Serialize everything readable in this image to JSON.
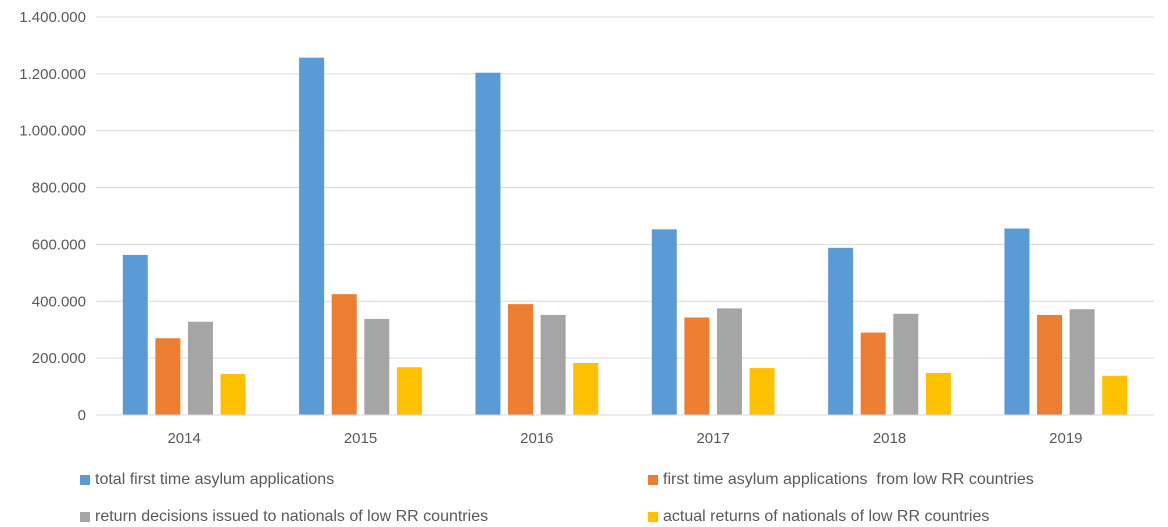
{
  "chart_data": {
    "type": "bar",
    "categories": [
      "2014",
      "2015",
      "2016",
      "2017",
      "2018",
      "2019"
    ],
    "series": [
      {
        "name": "total first time asylum applications",
        "color": "#5B9BD5",
        "values": [
          563000,
          1257000,
          1204000,
          653000,
          588000,
          656000
        ]
      },
      {
        "name": "first time asylum applications  from low RR countries",
        "color": "#ED7D31",
        "values": [
          270000,
          425000,
          390000,
          343000,
          290000,
          352000
        ]
      },
      {
        "name": "return decisions issued to nationals of low RR countries",
        "color": "#A5A5A5",
        "values": [
          328000,
          338000,
          352000,
          375000,
          356000,
          372000
        ]
      },
      {
        "name": "actual returns of nationals of low RR countries",
        "color": "#FFC000",
        "values": [
          144000,
          168000,
          183000,
          165000,
          148000,
          138000
        ]
      }
    ],
    "y_ticks": [
      "0",
      "200.000",
      "400.000",
      "600.000",
      "800.000",
      "1.000.000",
      "1.200.000",
      "1.400.000"
    ],
    "ylim": [
      0,
      1400000
    ],
    "grid": true,
    "legend_position": "bottom"
  }
}
